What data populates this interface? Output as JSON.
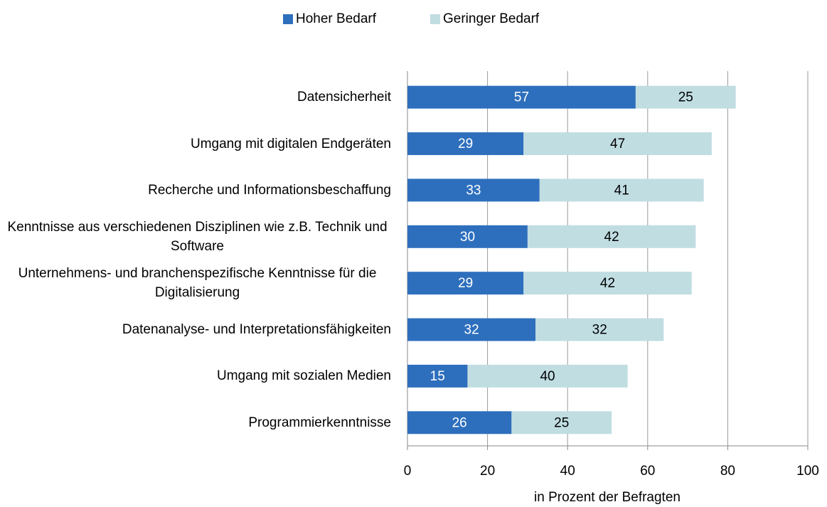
{
  "chart_data": {
    "type": "stacked_bar_horizontal",
    "categories": [
      "Datensicherheit",
      "Umgang mit digitalen Endgeräten",
      "Recherche und Informationsbeschaffung",
      "Kenntnisse aus verschiedenen Disziplinen wie z.B. Technik und Software",
      "Unternehmens- und branchenspezifische Kenntnisse für die Digitalisierung",
      "Datenanalyse- und Interpretationsfähigkeiten",
      "Umgang mit sozialen Medien",
      "Programmierkenntnisse"
    ],
    "series": [
      {
        "name": "Hoher Bedarf",
        "color": "#2e6fbd",
        "label_color": "#ffffff",
        "values": [
          57,
          29,
          33,
          30,
          29,
          32,
          15,
          26
        ]
      },
      {
        "name": "Geringer Bedarf",
        "color": "#c0dde2",
        "label_color": "#000000",
        "values": [
          25,
          47,
          41,
          42,
          42,
          32,
          40,
          25
        ]
      }
    ],
    "xlim": [
      0,
      100
    ],
    "xticks": [
      0,
      20,
      40,
      60,
      80,
      100
    ],
    "xlabel": "in Prozent der Befragten",
    "grid": true,
    "legend": "top"
  }
}
